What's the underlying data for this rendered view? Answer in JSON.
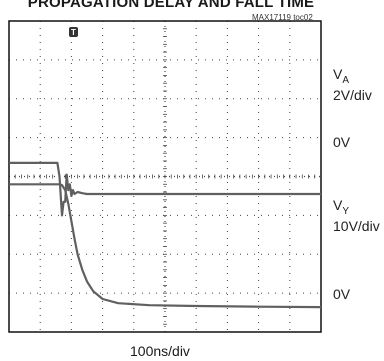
{
  "title": "PROPAGATION DELAY AND FALL TIME",
  "figure_id": "MAX17119 toc02",
  "x_scale_label": "100ns/div",
  "trigger_marker": "T",
  "colors": {
    "trace": "#606060",
    "grid_dots": "#444444",
    "frame": "#111111"
  },
  "chart_data": {
    "type": "line",
    "title": "PROPAGATION DELAY AND FALL TIME",
    "xlabel": "100ns/div",
    "ylabel": "",
    "grid": true,
    "divisions": {
      "x": 10,
      "y": 8
    },
    "x_unit": "div",
    "series": [
      {
        "name": "VA",
        "label_main": "V",
        "label_sub": "A",
        "scale": "2V/div",
        "zero_label": "0V",
        "zero_div": 3.55,
        "x": [
          0,
          1.55,
          1.62,
          1.7,
          1.75,
          1.8,
          1.85,
          1.9,
          1.95,
          2.0,
          2.05,
          2.1,
          2.2,
          2.35,
          2.5,
          3.0,
          10
        ],
        "y": [
          4.35,
          4.35,
          4.0,
          3.0,
          3.35,
          3.35,
          4.05,
          3.65,
          3.8,
          3.5,
          3.65,
          3.55,
          3.6,
          3.57,
          3.55,
          3.55,
          3.55
        ]
      },
      {
        "name": "VY",
        "label_main": "V",
        "label_sub": "Y",
        "scale": "10V/div",
        "zero_label": "0V",
        "zero_div": 0.65,
        "x": [
          0,
          1.6,
          1.7,
          1.8,
          1.9,
          2.0,
          2.1,
          2.2,
          2.35,
          2.5,
          2.7,
          3.0,
          3.5,
          4.5,
          6.0,
          8.0,
          10
        ],
        "y": [
          3.8,
          3.8,
          3.78,
          3.65,
          3.3,
          2.85,
          2.4,
          2.0,
          1.6,
          1.3,
          1.05,
          0.85,
          0.74,
          0.69,
          0.67,
          0.65,
          0.64
        ]
      }
    ]
  }
}
